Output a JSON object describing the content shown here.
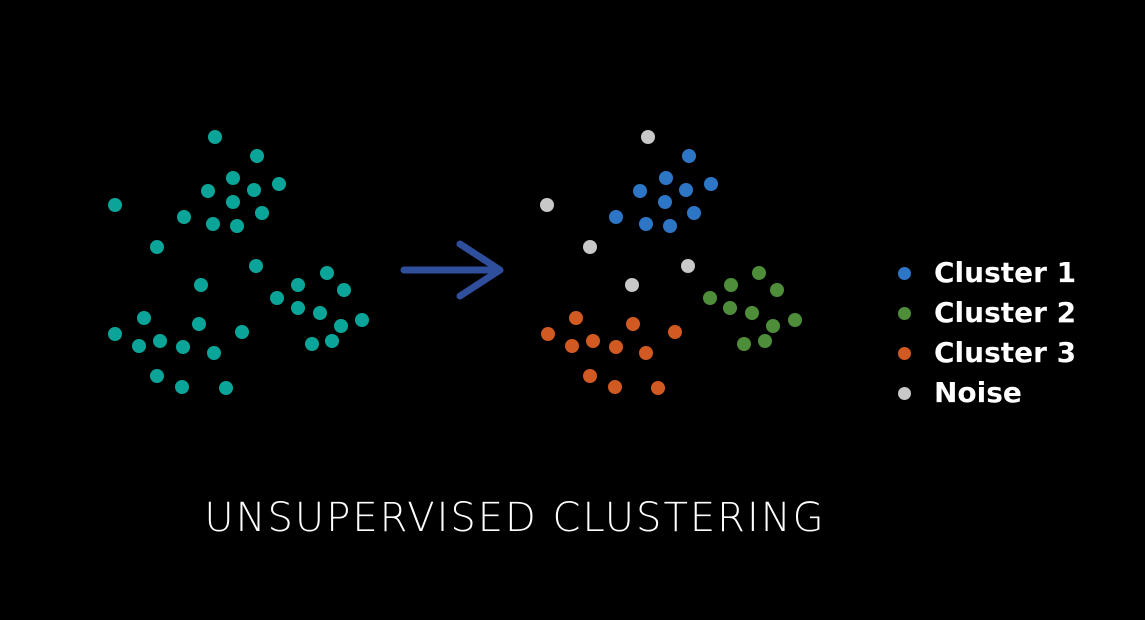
{
  "caption": "UNSUPERVISED CLUSTERING",
  "colors": {
    "background": "#000000",
    "unlabeled": "#0aa598",
    "arrow": "#2f4e9c",
    "cluster_1": "#2d76c5",
    "cluster_2": "#4e8e3a",
    "cluster_3": "#d05a22",
    "noise": "#c8c8c8"
  },
  "legend": [
    {
      "label": "Cluster 1",
      "color": "#2d76c5"
    },
    {
      "label": "Cluster 2",
      "color": "#4e8e3a"
    },
    {
      "label": "Cluster 3",
      "color": "#d05a22"
    },
    {
      "label": "Noise",
      "color": "#c8c8c8"
    }
  ]
}
